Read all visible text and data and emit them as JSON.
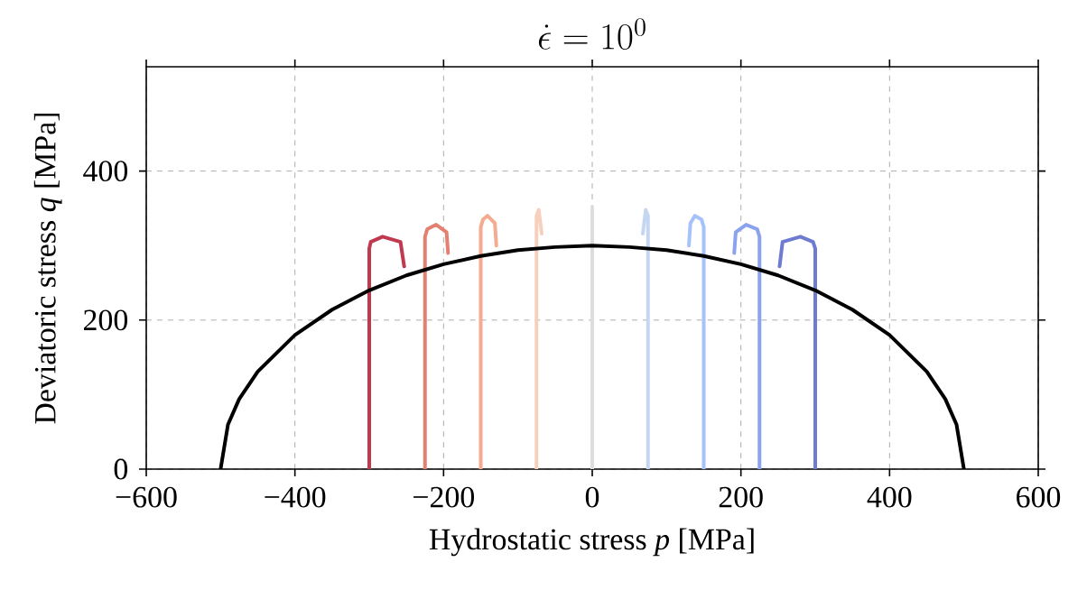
{
  "chart_data": {
    "type": "line",
    "title": "\\dot{\\epsilon} = 10^0",
    "xlabel": "Hydrostatic stress *p* [MPa]",
    "ylabel": "Deviatoric stress *q* [MPa]",
    "xlim": [
      -600,
      600
    ],
    "ylim": [
      0,
      540
    ],
    "xticks": [
      {
        "value": -600,
        "label": "−600"
      },
      {
        "value": -400,
        "label": "−400"
      },
      {
        "value": -200,
        "label": "−200"
      },
      0,
      200,
      400,
      600
    ],
    "yticks": [
      0,
      200,
      400
    ],
    "grid": true,
    "marker": "none",
    "line_style": "solid",
    "series": [
      {
        "color": "#c0394f",
        "x": [
          -300,
          -300,
          -298,
          -282,
          -258,
          -253
        ],
        "values": [
          0,
          296,
          305,
          312,
          305,
          272
        ]
      },
      {
        "color": "#e38070",
        "x": [
          -225,
          -225,
          -222,
          -210,
          -196,
          -194
        ],
        "values": [
          0,
          312,
          322,
          328,
          318,
          290
        ]
      },
      {
        "color": "#f4ab8f",
        "x": [
          -150,
          -150,
          -147,
          -141,
          -131,
          -129
        ],
        "values": [
          0,
          325,
          335,
          340,
          330,
          300
        ]
      },
      {
        "color": "#f6d0bc",
        "x": [
          -75,
          -75,
          -72,
          -68
        ],
        "values": [
          0,
          340,
          348,
          316
        ]
      },
      {
        "color": "#dddddd",
        "x": [
          0,
          0
        ],
        "values": [
          0,
          352
        ]
      },
      {
        "color": "#c5d6f2",
        "x": [
          75,
          75,
          72,
          68
        ],
        "values": [
          0,
          340,
          348,
          316
        ]
      },
      {
        "color": "#a5c2fb",
        "x": [
          150,
          150,
          147,
          138,
          132,
          130
        ],
        "values": [
          0,
          325,
          335,
          340,
          330,
          300
        ]
      },
      {
        "color": "#8ba2ef",
        "x": [
          225,
          225,
          222,
          207,
          193,
          191
        ],
        "values": [
          0,
          312,
          322,
          328,
          318,
          290
        ]
      },
      {
        "color": "#6d7bd0",
        "x": [
          300,
          300,
          297,
          280,
          256,
          252
        ],
        "values": [
          0,
          296,
          305,
          312,
          305,
          272
        ]
      },
      {
        "color": "#000000",
        "x": [
          -500,
          -490,
          -475,
          -450,
          -400,
          -350,
          -300,
          -250,
          -200,
          -150,
          -100,
          -50,
          0,
          50,
          100,
          150,
          200,
          250,
          300,
          350,
          400,
          450,
          475,
          490,
          500
        ],
        "values": [
          0,
          60,
          94,
          131,
          180,
          214,
          240,
          260,
          275,
          286,
          294,
          298,
          300,
          298,
          294,
          286,
          275,
          260,
          240,
          214,
          180,
          131,
          94,
          60,
          0
        ]
      }
    ]
  }
}
